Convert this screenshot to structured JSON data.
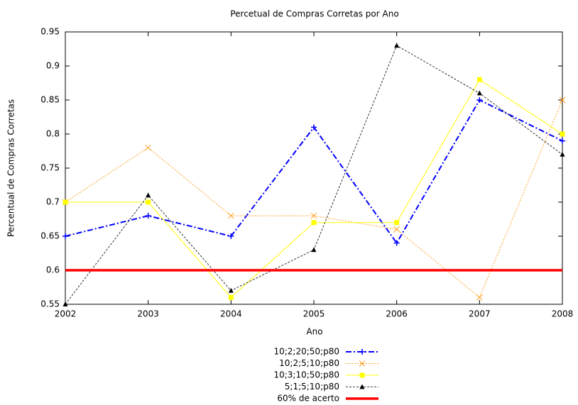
{
  "chart_data": {
    "type": "line",
    "title": "Percetual de Compras Corretas por Ano",
    "x_label": "Ano",
    "y_label": "Percentual de Compras Corretas",
    "x": [
      2002,
      2003,
      2004,
      2005,
      2006,
      2007,
      2008
    ],
    "xlim": [
      2002,
      2008
    ],
    "xticks": [
      2002,
      2003,
      2004,
      2005,
      2006,
      2007,
      2008
    ],
    "ylim": [
      0.55,
      0.95
    ],
    "yticks": [
      0.55,
      0.6,
      0.65,
      0.7,
      0.75,
      0.8,
      0.85,
      0.9,
      0.95
    ],
    "legend": "bottom",
    "series": [
      {
        "name": "10;2;20;50;p80",
        "color": "#0000ff",
        "line_style": "dash-dot",
        "marker": "plus",
        "values": [
          0.65,
          0.68,
          0.65,
          0.81,
          0.64,
          0.85,
          0.79
        ]
      },
      {
        "name": "10;2;5;10;p80",
        "color": "#ffa020",
        "line_style": "dotted",
        "marker": "cross",
        "values": [
          0.7,
          0.78,
          0.68,
          0.68,
          0.66,
          0.56,
          0.85
        ]
      },
      {
        "name": "10;3;10;50;p80",
        "color": "#ffff00",
        "line_style": "solid",
        "marker": "square",
        "values": [
          0.7,
          0.7,
          0.56,
          0.67,
          0.67,
          0.88,
          0.8
        ]
      },
      {
        "name": "5;1;5;10;p80",
        "color": "#000000",
        "line_style": "dashed",
        "marker": "triangle",
        "values": [
          0.55,
          0.71,
          0.57,
          0.63,
          0.93,
          0.86,
          0.77
        ]
      },
      {
        "name": "60% de acerto",
        "color": "#ff0000",
        "line_style": "thick",
        "marker": "none",
        "values": [
          0.6,
          0.6,
          0.6,
          0.6,
          0.6,
          0.6,
          0.6
        ]
      }
    ]
  }
}
